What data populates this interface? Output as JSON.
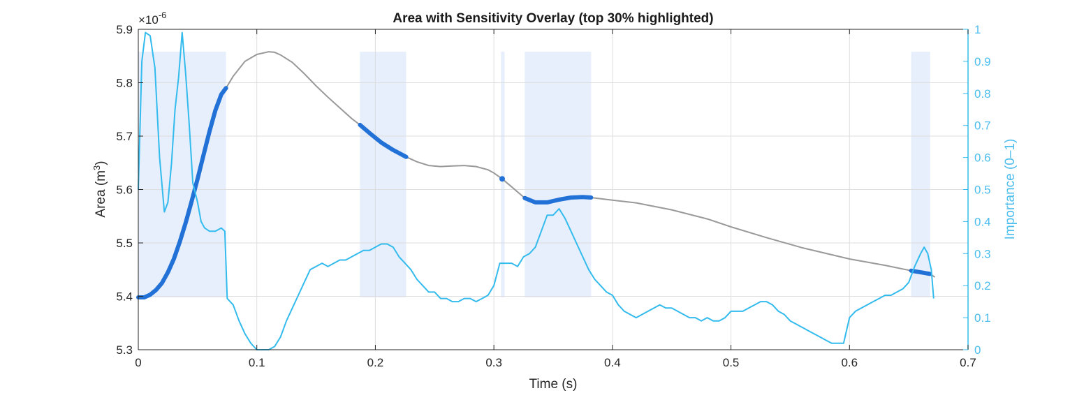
{
  "chart_data": {
    "type": "line",
    "title": "Area with Sensitivity Overlay (top 30% highlighted)",
    "xlabel": "Time (s)",
    "ylabel_left": "Area  (m",
    "ylabel_left_sup": "3",
    "ylabel_left_close": ")",
    "ylabel_right": "Importance (0–1)",
    "exponent_base": "×10",
    "exponent_power": "-6",
    "xlim": [
      0,
      0.7
    ],
    "ylim_left": [
      5.3,
      5.9
    ],
    "ylim_right": [
      0,
      1
    ],
    "x_ticks": [
      "0",
      "0.1",
      "0.2",
      "0.3",
      "0.4",
      "0.5",
      "0.6",
      "0.7"
    ],
    "x_tick_values": [
      0,
      0.1,
      0.2,
      0.3,
      0.4,
      0.5,
      0.6,
      0.7
    ],
    "y_left_ticks": [
      "5.3",
      "5.4",
      "5.5",
      "5.6",
      "5.7",
      "5.8",
      "5.9"
    ],
    "y_left_tick_values": [
      5.3,
      5.4,
      5.5,
      5.6,
      5.7,
      5.8,
      5.9
    ],
    "y_right_ticks": [
      "0",
      "0.1",
      "0.2",
      "0.3",
      "0.4",
      "0.5",
      "0.6",
      "0.7",
      "0.8",
      "0.9",
      "1"
    ],
    "y_right_tick_values": [
      0,
      0.1,
      0.2,
      0.3,
      0.4,
      0.5,
      0.6,
      0.7,
      0.8,
      0.9,
      1
    ],
    "grid": true,
    "colors": {
      "area_line": "#999999",
      "highlight_line": "#2271d6",
      "importance_line": "#33bbee",
      "band_fill": "#e6effb",
      "axis": "#262626",
      "grid": "#dedede"
    },
    "highlight_bands": [
      {
        "x_start": 0.0,
        "x_end": 0.074
      },
      {
        "x_start": 0.187,
        "x_end": 0.226
      },
      {
        "x_start": 0.306,
        "x_end": 0.309
      },
      {
        "x_start": 0.326,
        "x_end": 0.382
      },
      {
        "x_start": 0.652,
        "x_end": 0.668
      }
    ],
    "series": [
      {
        "name": "Area",
        "axis": "left",
        "x": [
          0.0,
          0.005,
          0.01,
          0.015,
          0.02,
          0.025,
          0.03,
          0.035,
          0.04,
          0.045,
          0.05,
          0.055,
          0.06,
          0.065,
          0.07,
          0.074,
          0.08,
          0.09,
          0.1,
          0.11,
          0.115,
          0.12,
          0.13,
          0.14,
          0.15,
          0.16,
          0.17,
          0.18,
          0.187,
          0.195,
          0.205,
          0.215,
          0.226,
          0.235,
          0.245,
          0.255,
          0.265,
          0.275,
          0.285,
          0.295,
          0.3,
          0.307,
          0.315,
          0.326,
          0.335,
          0.345,
          0.355,
          0.365,
          0.375,
          0.382,
          0.4,
          0.42,
          0.45,
          0.48,
          0.5,
          0.53,
          0.56,
          0.6,
          0.63,
          0.652,
          0.66,
          0.668,
          0.672
        ],
        "y": [
          5.398,
          5.398,
          5.403,
          5.412,
          5.425,
          5.445,
          5.47,
          5.502,
          5.538,
          5.578,
          5.62,
          5.664,
          5.708,
          5.748,
          5.778,
          5.79,
          5.812,
          5.84,
          5.853,
          5.858,
          5.857,
          5.852,
          5.838,
          5.817,
          5.794,
          5.773,
          5.753,
          5.733,
          5.721,
          5.706,
          5.688,
          5.674,
          5.661,
          5.652,
          5.645,
          5.643,
          5.644,
          5.645,
          5.643,
          5.637,
          5.631,
          5.62,
          5.605,
          5.584,
          5.576,
          5.576,
          5.581,
          5.585,
          5.586,
          5.585,
          5.58,
          5.575,
          5.562,
          5.545,
          5.53,
          5.51,
          5.491,
          5.47,
          5.458,
          5.448,
          5.445,
          5.442,
          5.436
        ]
      },
      {
        "name": "Importance",
        "axis": "right",
        "x": [
          0.0,
          0.003,
          0.006,
          0.01,
          0.014,
          0.018,
          0.022,
          0.025,
          0.028,
          0.031,
          0.034,
          0.037,
          0.04,
          0.043,
          0.046,
          0.05,
          0.053,
          0.056,
          0.06,
          0.065,
          0.07,
          0.073,
          0.075,
          0.08,
          0.085,
          0.09,
          0.095,
          0.1,
          0.105,
          0.11,
          0.115,
          0.12,
          0.125,
          0.13,
          0.135,
          0.14,
          0.145,
          0.15,
          0.155,
          0.16,
          0.165,
          0.17,
          0.175,
          0.18,
          0.185,
          0.19,
          0.195,
          0.2,
          0.205,
          0.21,
          0.215,
          0.22,
          0.225,
          0.23,
          0.235,
          0.24,
          0.245,
          0.25,
          0.255,
          0.26,
          0.265,
          0.27,
          0.275,
          0.28,
          0.285,
          0.29,
          0.295,
          0.3,
          0.305,
          0.31,
          0.315,
          0.32,
          0.325,
          0.33,
          0.335,
          0.34,
          0.345,
          0.35,
          0.355,
          0.36,
          0.365,
          0.37,
          0.375,
          0.38,
          0.385,
          0.39,
          0.395,
          0.4,
          0.405,
          0.41,
          0.415,
          0.42,
          0.425,
          0.43,
          0.435,
          0.44,
          0.445,
          0.45,
          0.455,
          0.46,
          0.465,
          0.47,
          0.475,
          0.48,
          0.485,
          0.49,
          0.495,
          0.5,
          0.505,
          0.51,
          0.515,
          0.52,
          0.525,
          0.53,
          0.535,
          0.54,
          0.545,
          0.55,
          0.555,
          0.56,
          0.565,
          0.57,
          0.575,
          0.58,
          0.585,
          0.59,
          0.595,
          0.6,
          0.605,
          0.61,
          0.615,
          0.62,
          0.625,
          0.63,
          0.635,
          0.64,
          0.645,
          0.65,
          0.655,
          0.66,
          0.663,
          0.666,
          0.669,
          0.671
        ],
        "y": [
          0.5,
          0.9,
          0.99,
          0.98,
          0.88,
          0.6,
          0.43,
          0.46,
          0.58,
          0.75,
          0.85,
          0.99,
          0.86,
          0.7,
          0.52,
          0.46,
          0.4,
          0.38,
          0.37,
          0.37,
          0.38,
          0.37,
          0.16,
          0.14,
          0.09,
          0.05,
          0.02,
          0.0,
          0.0,
          0.0,
          0.01,
          0.04,
          0.09,
          0.13,
          0.17,
          0.21,
          0.25,
          0.26,
          0.27,
          0.26,
          0.27,
          0.28,
          0.28,
          0.29,
          0.3,
          0.31,
          0.31,
          0.32,
          0.33,
          0.33,
          0.32,
          0.29,
          0.27,
          0.25,
          0.22,
          0.2,
          0.18,
          0.18,
          0.16,
          0.16,
          0.15,
          0.15,
          0.16,
          0.16,
          0.15,
          0.16,
          0.17,
          0.2,
          0.27,
          0.27,
          0.27,
          0.26,
          0.29,
          0.3,
          0.32,
          0.37,
          0.42,
          0.42,
          0.44,
          0.41,
          0.37,
          0.33,
          0.29,
          0.25,
          0.22,
          0.2,
          0.18,
          0.17,
          0.14,
          0.12,
          0.11,
          0.1,
          0.11,
          0.12,
          0.13,
          0.14,
          0.13,
          0.13,
          0.12,
          0.11,
          0.1,
          0.1,
          0.09,
          0.1,
          0.09,
          0.09,
          0.1,
          0.12,
          0.12,
          0.12,
          0.13,
          0.14,
          0.15,
          0.15,
          0.14,
          0.12,
          0.11,
          0.09,
          0.08,
          0.07,
          0.06,
          0.05,
          0.04,
          0.03,
          0.02,
          0.02,
          0.02,
          0.1,
          0.12,
          0.13,
          0.14,
          0.15,
          0.16,
          0.17,
          0.17,
          0.18,
          0.19,
          0.21,
          0.26,
          0.3,
          0.32,
          0.3,
          0.25,
          0.16
        ]
      }
    ]
  }
}
